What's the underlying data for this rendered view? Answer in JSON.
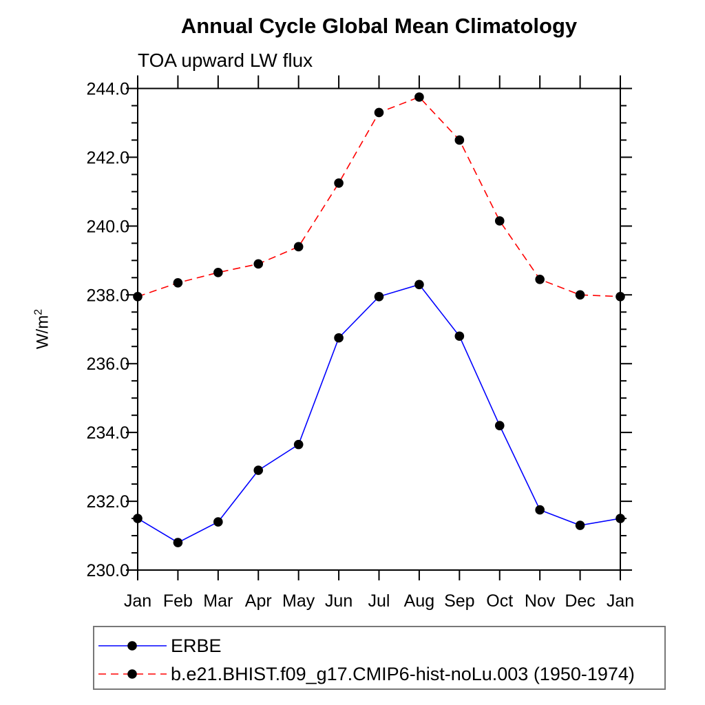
{
  "chart": {
    "title": "Annual Cycle Global Mean Climatology",
    "subtitle": "TOA upward LW flux",
    "ylabel_base": "W/m",
    "ylabel_exponent": "2"
  },
  "chart_data": {
    "type": "line",
    "x_categories": [
      "Jan",
      "Feb",
      "Mar",
      "Apr",
      "May",
      "Jun",
      "Jul",
      "Aug",
      "Sep",
      "Oct",
      "Nov",
      "Dec",
      "Jan"
    ],
    "ylim": [
      230.0,
      244.0
    ],
    "y_major_step": 2.0,
    "y_minor_step": 0.5,
    "y_tick_labels": [
      "230.0",
      "232.0",
      "234.0",
      "236.0",
      "238.0",
      "240.0",
      "242.0",
      "244.0"
    ],
    "grid": false,
    "legend_position": "boxed-below-plot",
    "series": [
      {
        "name": "ERBE",
        "color": "#0000ff",
        "line_style": "solid",
        "marker": "filled-circle",
        "marker_color": "#000000",
        "values": [
          231.5,
          230.8,
          231.4,
          232.9,
          233.65,
          236.75,
          237.95,
          238.3,
          236.8,
          234.2,
          231.75,
          231.3,
          231.5
        ]
      },
      {
        "name": "b.e21.BHIST.f09_g17.CMIP6-hist-noLu.003 (1950-1974)",
        "color": "#ff0000",
        "line_style": "dashed",
        "marker": "filled-circle",
        "marker_color": "#000000",
        "values": [
          237.95,
          238.35,
          238.65,
          238.9,
          239.4,
          241.25,
          243.3,
          243.75,
          242.5,
          240.15,
          238.45,
          238.0,
          237.95
        ]
      }
    ]
  },
  "colors": {
    "axis": "#000000",
    "background": "#ffffff",
    "legend_border": "#777777"
  }
}
